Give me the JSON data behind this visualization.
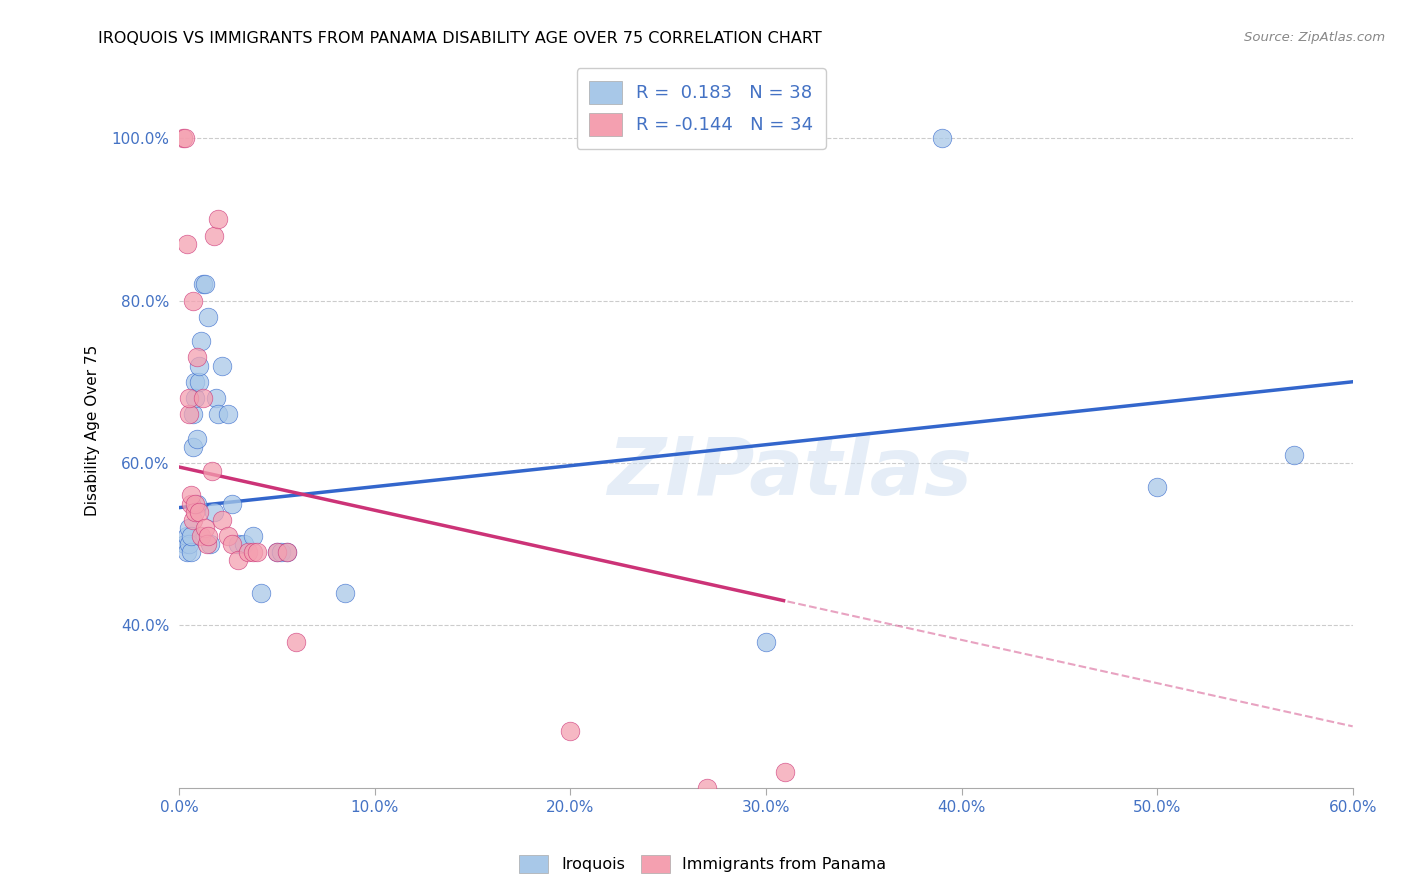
{
  "title": "IROQUOIS VS IMMIGRANTS FROM PANAMA DISABILITY AGE OVER 75 CORRELATION CHART",
  "source": "Source: ZipAtlas.com",
  "ylabel": "Disability Age Over 75",
  "xlim": [
    0.0,
    0.6
  ],
  "ylim": [
    0.2,
    1.08
  ],
  "xtick_labels": [
    "0.0%",
    "10.0%",
    "20.0%",
    "30.0%",
    "40.0%",
    "50.0%",
    "60.0%"
  ],
  "xtick_values": [
    0.0,
    0.1,
    0.2,
    0.3,
    0.4,
    0.5,
    0.6
  ],
  "ytick_labels": [
    "40.0%",
    "60.0%",
    "80.0%",
    "100.0%"
  ],
  "ytick_values": [
    0.4,
    0.6,
    0.8,
    1.0
  ],
  "blue_r": 0.183,
  "blue_n": 38,
  "pink_r": -0.144,
  "pink_n": 34,
  "blue_color": "#a8c8e8",
  "pink_color": "#f4a0b0",
  "blue_line_color": "#3366cc",
  "pink_line_color": "#cc3377",
  "watermark": "ZIPatlas",
  "legend_color": "#4472c4",
  "iroquois_x": [
    0.003,
    0.004,
    0.004,
    0.005,
    0.005,
    0.006,
    0.006,
    0.007,
    0.007,
    0.008,
    0.008,
    0.009,
    0.009,
    0.01,
    0.01,
    0.011,
    0.012,
    0.013,
    0.015,
    0.016,
    0.018,
    0.019,
    0.02,
    0.022,
    0.025,
    0.027,
    0.03,
    0.033,
    0.038,
    0.042,
    0.05,
    0.052,
    0.055,
    0.085,
    0.3,
    0.39,
    0.5,
    0.57
  ],
  "iroquois_y": [
    0.5,
    0.49,
    0.51,
    0.52,
    0.5,
    0.49,
    0.51,
    0.62,
    0.66,
    0.7,
    0.68,
    0.63,
    0.55,
    0.7,
    0.72,
    0.75,
    0.82,
    0.82,
    0.78,
    0.5,
    0.54,
    0.68,
    0.66,
    0.72,
    0.66,
    0.55,
    0.5,
    0.5,
    0.51,
    0.44,
    0.49,
    0.49,
    0.49,
    0.44,
    0.38,
    1.0,
    0.57,
    0.61
  ],
  "panama_x": [
    0.002,
    0.003,
    0.004,
    0.005,
    0.005,
    0.006,
    0.006,
    0.007,
    0.007,
    0.008,
    0.008,
    0.009,
    0.01,
    0.011,
    0.012,
    0.013,
    0.014,
    0.015,
    0.017,
    0.018,
    0.02,
    0.022,
    0.025,
    0.027,
    0.03,
    0.035,
    0.038,
    0.04,
    0.05,
    0.055,
    0.06,
    0.2,
    0.27,
    0.31
  ],
  "panama_y": [
    1.0,
    1.0,
    0.87,
    0.66,
    0.68,
    0.55,
    0.56,
    0.53,
    0.8,
    0.54,
    0.55,
    0.73,
    0.54,
    0.51,
    0.68,
    0.52,
    0.5,
    0.51,
    0.59,
    0.88,
    0.9,
    0.53,
    0.51,
    0.5,
    0.48,
    0.49,
    0.49,
    0.49,
    0.49,
    0.49,
    0.38,
    0.27,
    0.2,
    0.22
  ]
}
